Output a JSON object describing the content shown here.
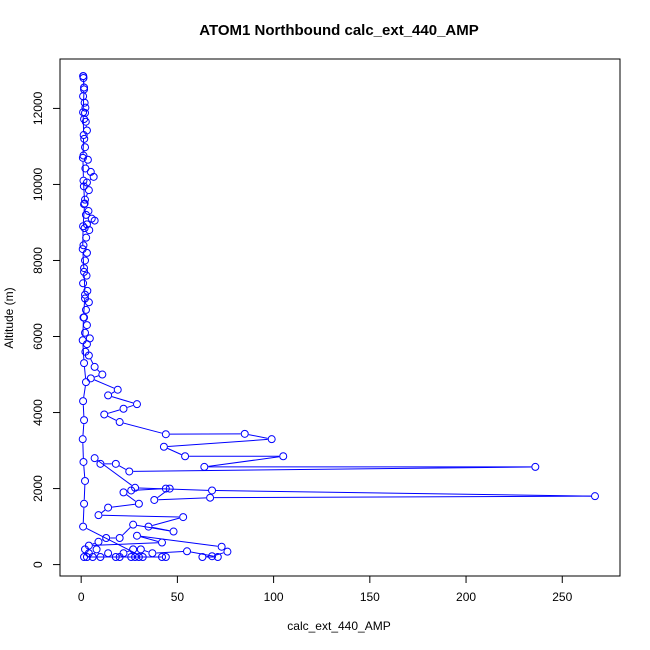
{
  "chart_data": {
    "type": "line",
    "title": "ATOM1 Northbound calc_ext_440_AMP",
    "xlabel": "calc_ext_440_AMP",
    "ylabel": "Altitude (m)",
    "xlim": [
      -11,
      280
    ],
    "ylim": [
      -300,
      13300
    ],
    "x_ticks": [
      0,
      50,
      100,
      150,
      200,
      250
    ],
    "y_ticks": [
      0,
      2000,
      4000,
      6000,
      8000,
      10000,
      12000
    ],
    "series_color": "#0000ff",
    "marker": "open-circle",
    "grid": false,
    "legend": "none",
    "points": [
      [
        1.0,
        12850
      ],
      [
        1.2,
        12800
      ],
      [
        1.5,
        12550
      ],
      [
        1.0,
        12320
      ],
      [
        1.8,
        12150
      ],
      [
        2.2,
        12020
      ],
      [
        2.0,
        11880
      ],
      [
        1.5,
        11720
      ],
      [
        2.4,
        11650
      ],
      [
        3.0,
        11420
      ],
      [
        1.6,
        11200
      ],
      [
        2.0,
        10980
      ],
      [
        1.2,
        10760
      ],
      [
        3.5,
        10650
      ],
      [
        2.2,
        10420
      ],
      [
        5.0,
        10330
      ],
      [
        6.5,
        10200
      ],
      [
        3.0,
        10050
      ],
      [
        1.4,
        9950
      ],
      [
        4.0,
        9850
      ],
      [
        2.0,
        9600
      ],
      [
        1.5,
        9480
      ],
      [
        3.8,
        9300
      ],
      [
        2.5,
        9200
      ],
      [
        5.5,
        9100
      ],
      [
        7.0,
        9050
      ],
      [
        3.0,
        8950
      ],
      [
        1.8,
        8850
      ],
      [
        4.2,
        8800
      ],
      [
        2.6,
        8600
      ],
      [
        1.2,
        8400
      ],
      [
        3.0,
        8200
      ],
      [
        2.0,
        8000
      ],
      [
        1.5,
        7800
      ],
      [
        2.8,
        7600
      ],
      [
        1.0,
        7400
      ],
      [
        3.2,
        7200
      ],
      [
        2.0,
        7000
      ],
      [
        4.0,
        6900
      ],
      [
        2.5,
        6700
      ],
      [
        1.5,
        6500
      ],
      [
        3.0,
        6300
      ],
      [
        2.0,
        6100
      ],
      [
        4.5,
        5950
      ],
      [
        3.0,
        5800
      ],
      [
        2.2,
        5600
      ],
      [
        4.0,
        5500
      ],
      [
        7.0,
        5200
      ],
      [
        11.0,
        5000
      ],
      [
        5.0,
        4900
      ],
      [
        19.0,
        4600
      ],
      [
        14.0,
        4450
      ],
      [
        29.0,
        4220
      ],
      [
        22.0,
        4100
      ],
      [
        12.0,
        3950
      ],
      [
        20.0,
        3750
      ],
      [
        44.0,
        3430
      ],
      [
        85.0,
        3440
      ],
      [
        99.0,
        3300
      ],
      [
        43.0,
        3100
      ],
      [
        54.0,
        2850
      ],
      [
        105.0,
        2850
      ],
      [
        64.0,
        2570
      ],
      [
        236.0,
        2570
      ],
      [
        25.0,
        2450
      ],
      [
        18.0,
        2650
      ],
      [
        10.0,
        2650
      ],
      [
        7.0,
        2800
      ],
      [
        28.0,
        2020
      ],
      [
        68.0,
        1950
      ],
      [
        267.0,
        1800
      ],
      [
        67.0,
        1760
      ],
      [
        38.0,
        1700
      ],
      [
        46.0,
        2000
      ],
      [
        44.0,
        2000
      ],
      [
        26.0,
        1950
      ],
      [
        22.0,
        1900
      ],
      [
        30.0,
        1600
      ],
      [
        14.0,
        1500
      ],
      [
        9.0,
        1300
      ],
      [
        53.0,
        1250
      ],
      [
        35.0,
        1000
      ],
      [
        48.0,
        870
      ],
      [
        27.0,
        1050
      ],
      [
        20.0,
        700
      ],
      [
        13.0,
        700
      ],
      [
        9.0,
        600
      ],
      [
        4.0,
        500
      ],
      [
        42.0,
        580
      ],
      [
        29.0,
        760
      ],
      [
        73.0,
        470
      ],
      [
        76.0,
        340
      ],
      [
        68.0,
        220
      ],
      [
        63.0,
        200
      ],
      [
        71.0,
        200
      ],
      [
        55.0,
        350
      ],
      [
        37.0,
        300
      ],
      [
        31.0,
        400
      ],
      [
        27.0,
        400
      ],
      [
        22.0,
        300
      ],
      [
        18.0,
        200
      ],
      [
        14.0,
        300
      ],
      [
        10.0,
        200
      ],
      [
        8.0,
        400
      ],
      [
        6.0,
        200
      ],
      [
        4.0,
        300
      ],
      [
        3.0,
        200
      ],
      [
        2.0,
        400
      ],
      [
        1.5,
        200
      ],
      [
        42.0,
        200
      ],
      [
        44.0,
        200
      ],
      [
        28.0,
        200
      ],
      [
        26.0,
        200
      ],
      [
        30.0,
        200
      ],
      [
        20.0,
        200
      ],
      [
        32.0,
        200
      ],
      [
        1.0,
        1000
      ],
      [
        1.5,
        1600
      ],
      [
        2.0,
        2200
      ],
      [
        1.2,
        2700
      ],
      [
        0.8,
        3300
      ],
      [
        1.5,
        3800
      ],
      [
        1.0,
        4300
      ],
      [
        2.5,
        4800
      ],
      [
        1.5,
        5300
      ],
      [
        0.8,
        5900
      ],
      [
        1.2,
        6500
      ],
      [
        2.0,
        7100
      ],
      [
        1.5,
        7700
      ],
      [
        0.8,
        8300
      ],
      [
        1.0,
        8900
      ],
      [
        1.8,
        9500
      ],
      [
        1.2,
        10100
      ],
      [
        0.9,
        10700
      ],
      [
        1.3,
        11300
      ],
      [
        1.0,
        11900
      ],
      [
        1.5,
        12500
      ],
      [
        1.1,
        12850
      ]
    ]
  }
}
